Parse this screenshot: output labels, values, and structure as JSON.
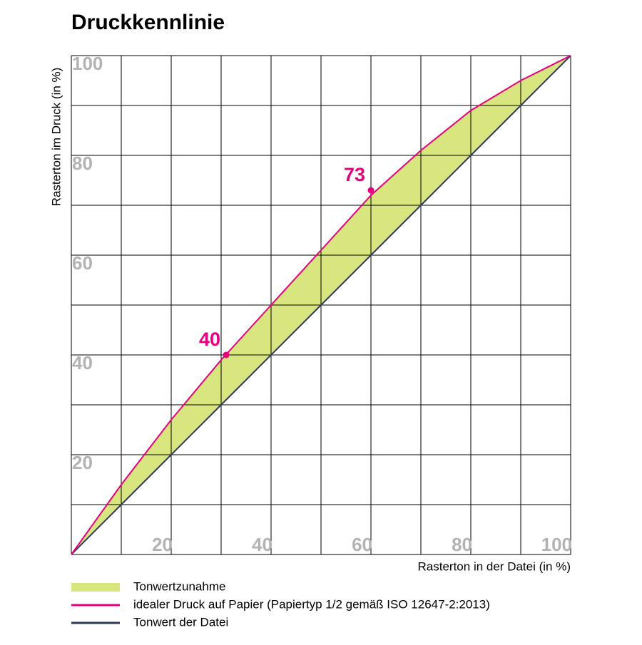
{
  "chart_data": {
    "type": "line",
    "title": "Druckkennlinie",
    "x_label": "Rasterton in der Datei (in %)",
    "y_label": "Rasterton im Druck (in %)",
    "x": [
      0,
      10,
      20,
      30,
      40,
      50,
      60,
      70,
      80,
      90,
      100
    ],
    "series": [
      {
        "name": "idealer Druck auf Papier (Papiertyp 1/2 gemäß ISO 12647-2:2013)",
        "color": "#e6007e",
        "values": [
          0,
          14,
          27,
          39,
          50,
          61,
          72,
          81,
          89,
          95,
          100
        ]
      },
      {
        "name": "Tonwert der Datei",
        "color": "#2e3a5c",
        "values": [
          0,
          10,
          20,
          30,
          40,
          50,
          60,
          70,
          80,
          90,
          100
        ]
      }
    ],
    "fill_between": {
      "name": "Tonwertzunahme",
      "color": "#d9e57f"
    },
    "points": [
      {
        "x": 31,
        "y": 40
      },
      {
        "x": 60,
        "y": 73
      }
    ],
    "xlim": [
      0,
      100
    ],
    "ylim": [
      0,
      100
    ],
    "xticks": [
      20,
      40,
      60,
      80,
      100
    ],
    "yticks": [
      20,
      40,
      60,
      80,
      100
    ],
    "grid": true
  }
}
